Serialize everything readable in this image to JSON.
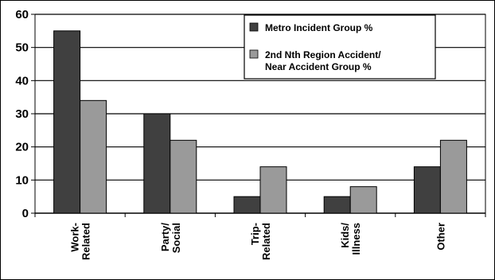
{
  "chart_data": {
    "type": "bar",
    "categories": [
      [
        "Work-",
        "Related"
      ],
      [
        "Party/",
        "Social"
      ],
      [
        "Trip-",
        "Related"
      ],
      [
        "Kids/",
        "Illness"
      ],
      [
        "Other"
      ]
    ],
    "series": [
      {
        "name": "Metro Incident Group %",
        "color": "#404040",
        "values": [
          55,
          30,
          5,
          5,
          14
        ]
      },
      {
        "name": [
          "2nd Nth Region Accident/",
          "Near Accident Group %"
        ],
        "color": "#9a9a9a",
        "values": [
          34,
          22,
          14,
          8,
          22
        ]
      }
    ],
    "yticks": [
      "0",
      "10",
      "20",
      "30",
      "40",
      "50",
      "60"
    ],
    "ylim": [
      0,
      60
    ],
    "grid": true,
    "legend_position": "top-right",
    "title": "",
    "xlabel": "",
    "ylabel": ""
  }
}
